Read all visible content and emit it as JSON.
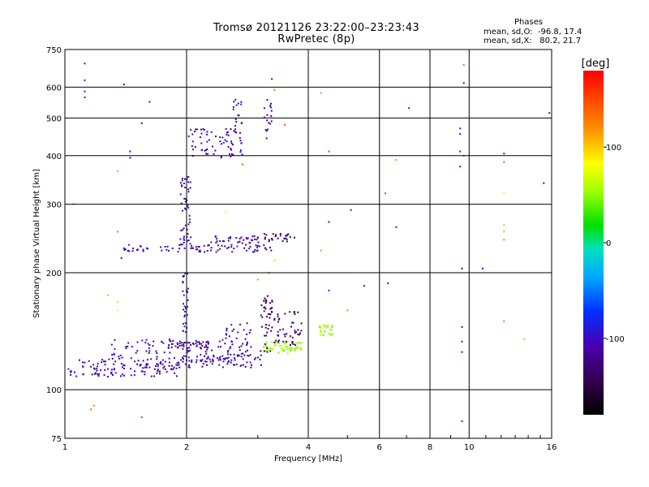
{
  "title_line1": "Tromsø 20121126 23:22:00–23:23:43",
  "title_line2": "RwPretec (8p)",
  "stats": {
    "header": "Phases",
    "line_o": "mean, sd,O:  -96.8, 17.4",
    "line_x": "mean, sd,X:   80.2, 21.7"
  },
  "chart_data": {
    "type": "scatter",
    "xlabel": "Frequency [MHz]",
    "ylabel": "Stationary phase Virtual Height [km]",
    "x_scale": "log",
    "y_scale": "log",
    "xlim": [
      1,
      16
    ],
    "ylim": [
      75,
      750
    ],
    "x_ticks": [
      1,
      2,
      4,
      6,
      8,
      10,
      16
    ],
    "x_tick_labels": [
      "1",
      "2",
      "4",
      "6",
      "8",
      "10",
      "16"
    ],
    "x_grid": [
      2,
      4,
      6,
      8,
      10
    ],
    "y_ticks": [
      75,
      100,
      200,
      300,
      400,
      500,
      600,
      750
    ],
    "y_tick_labels": [
      "75",
      "100",
      "200",
      "300",
      "400",
      "500",
      "600",
      "750"
    ],
    "y_grid": [
      100,
      200,
      300,
      400,
      500,
      600
    ],
    "grid": true,
    "colorbar": {
      "label": "[deg]",
      "min": -180,
      "max": 180,
      "ticks": [
        -100,
        0,
        100
      ],
      "tick_labels": [
        "-100",
        "0",
        "100"
      ]
    },
    "clusters": [
      {
        "x": [
          1.03,
          1.92
        ],
        "y": [
          108,
          120
        ],
        "phase": -110,
        "count": 120
      },
      {
        "x": [
          1.3,
          2.6
        ],
        "y": [
          118,
          135
        ],
        "phase": -100,
        "count": 90
      },
      {
        "x": [
          1.8,
          2.3
        ],
        "y": [
          128,
          134
        ],
        "phase": -120,
        "count": 40
      },
      {
        "x": [
          1.92,
          3.1
        ],
        "y": [
          114,
          123
        ],
        "phase": -105,
        "count": 70
      },
      {
        "x": [
          3.1,
          3.9
        ],
        "y": [
          124,
          133
        ],
        "phase": 55,
        "count": 60
      },
      {
        "x": [
          2.5,
          2.9
        ],
        "y": [
          122,
          150
        ],
        "phase": -105,
        "count": 40
      },
      {
        "x": [
          1.95,
          2.02
        ],
        "y": [
          140,
          200
        ],
        "phase": -100,
        "count": 30
      },
      {
        "x": [
          3.05,
          3.3
        ],
        "y": [
          125,
          175
        ],
        "phase": -135,
        "count": 45
      },
      {
        "x": [
          3.3,
          3.85
        ],
        "y": [
          130,
          160
        ],
        "phase": -130,
        "count": 45
      },
      {
        "x": [
          4.25,
          4.6
        ],
        "y": [
          138,
          147
        ],
        "phase": 55,
        "count": 25
      },
      {
        "x": [
          1.38,
          3.3
        ],
        "y": [
          226,
          236
        ],
        "phase": -105,
        "count": 80
      },
      {
        "x": [
          2.3,
          3.1
        ],
        "y": [
          238,
          250
        ],
        "phase": -110,
        "count": 35
      },
      {
        "x": [
          3.1,
          3.7
        ],
        "y": [
          240,
          252
        ],
        "phase": -140,
        "count": 25
      },
      {
        "x": [
          1.93,
          2.05
        ],
        "y": [
          236,
          355
        ],
        "phase": -100,
        "count": 50
      },
      {
        "x": [
          2.02,
          2.75
        ],
        "y": [
          395,
          470
        ],
        "phase": -110,
        "count": 70
      },
      {
        "x": [
          2.6,
          2.75
        ],
        "y": [
          470,
          560
        ],
        "phase": -100,
        "count": 15
      },
      {
        "x": [
          3.1,
          3.25
        ],
        "y": [
          420,
          560
        ],
        "phase": -110,
        "count": 18
      }
    ],
    "points": [
      {
        "x": 1.12,
        "y": 690,
        "phase": -80
      },
      {
        "x": 1.12,
        "y": 625,
        "phase": -75
      },
      {
        "x": 1.12,
        "y": 585,
        "phase": -70
      },
      {
        "x": 1.12,
        "y": 565,
        "phase": -80
      },
      {
        "x": 1.4,
        "y": 610,
        "phase": -105
      },
      {
        "x": 1.62,
        "y": 550,
        "phase": -90
      },
      {
        "x": 1.35,
        "y": 365,
        "phase": 40
      },
      {
        "x": 1.35,
        "y": 300,
        "phase": 80
      },
      {
        "x": 1.35,
        "y": 255,
        "phase": 130
      },
      {
        "x": 1.38,
        "y": 218,
        "phase": -85
      },
      {
        "x": 1.55,
        "y": 485,
        "phase": -110
      },
      {
        "x": 1.45,
        "y": 410,
        "phase": -110
      },
      {
        "x": 1.45,
        "y": 395,
        "phase": -110
      },
      {
        "x": 1.05,
        "y": 300,
        "phase": 120
      },
      {
        "x": 1.28,
        "y": 175,
        "phase": 110
      },
      {
        "x": 1.35,
        "y": 168,
        "phase": 60
      },
      {
        "x": 1.35,
        "y": 160,
        "phase": 80
      },
      {
        "x": 1.18,
        "y": 91,
        "phase": 130
      },
      {
        "x": 1.16,
        "y": 89,
        "phase": 140
      },
      {
        "x": 1.55,
        "y": 85,
        "phase": 150
      },
      {
        "x": 2.5,
        "y": 287,
        "phase": 90
      },
      {
        "x": 2.75,
        "y": 380,
        "phase": 140
      },
      {
        "x": 3.25,
        "y": 630,
        "phase": -100
      },
      {
        "x": 3.3,
        "y": 590,
        "phase": 130
      },
      {
        "x": 3.5,
        "y": 480,
        "phase": 150
      },
      {
        "x": 3.2,
        "y": 200,
        "phase": 130
      },
      {
        "x": 3.0,
        "y": 192,
        "phase": 120
      },
      {
        "x": 3.3,
        "y": 215,
        "phase": 100
      },
      {
        "x": 4.3,
        "y": 580,
        "phase": 120
      },
      {
        "x": 4.5,
        "y": 410,
        "phase": 160
      },
      {
        "x": 4.5,
        "y": 270,
        "phase": -110
      },
      {
        "x": 4.5,
        "y": 180,
        "phase": -80
      },
      {
        "x": 4.3,
        "y": 228,
        "phase": 120
      },
      {
        "x": 5.1,
        "y": 290,
        "phase": -85
      },
      {
        "x": 5.0,
        "y": 160,
        "phase": 120
      },
      {
        "x": 5.5,
        "y": 185,
        "phase": -110
      },
      {
        "x": 6.2,
        "y": 320,
        "phase": 150
      },
      {
        "x": 6.3,
        "y": 188,
        "phase": -110
      },
      {
        "x": 6.6,
        "y": 390,
        "phase": 120
      },
      {
        "x": 6.6,
        "y": 262,
        "phase": -110
      },
      {
        "x": 7.1,
        "y": 530,
        "phase": -80
      },
      {
        "x": 9.5,
        "y": 470,
        "phase": -75
      },
      {
        "x": 9.5,
        "y": 455,
        "phase": -80
      },
      {
        "x": 9.5,
        "y": 410,
        "phase": -90
      },
      {
        "x": 9.5,
        "y": 375,
        "phase": -80
      },
      {
        "x": 9.7,
        "y": 685,
        "phase": 130
      },
      {
        "x": 9.7,
        "y": 615,
        "phase": -80
      },
      {
        "x": 9.7,
        "y": 400,
        "phase": 140
      },
      {
        "x": 9.6,
        "y": 205,
        "phase": -110
      },
      {
        "x": 9.6,
        "y": 145,
        "phase": -85
      },
      {
        "x": 9.6,
        "y": 133,
        "phase": -80
      },
      {
        "x": 9.6,
        "y": 125,
        "phase": -90
      },
      {
        "x": 9.6,
        "y": 83,
        "phase": -75
      },
      {
        "x": 10.8,
        "y": 205,
        "phase": -110
      },
      {
        "x": 12.2,
        "y": 405,
        "phase": -75
      },
      {
        "x": 12.2,
        "y": 385,
        "phase": 140
      },
      {
        "x": 12.2,
        "y": 320,
        "phase": 60
      },
      {
        "x": 12.2,
        "y": 265,
        "phase": 110
      },
      {
        "x": 12.2,
        "y": 255,
        "phase": 110
      },
      {
        "x": 12.2,
        "y": 243,
        "phase": 130
      },
      {
        "x": 12.2,
        "y": 150,
        "phase": 130
      },
      {
        "x": 13.7,
        "y": 135,
        "phase": 110
      },
      {
        "x": 15.3,
        "y": 340,
        "phase": -110
      },
      {
        "x": 15.8,
        "y": 515,
        "phase": -80
      },
      {
        "x": 1.02,
        "y": 113,
        "phase": -70
      }
    ]
  }
}
